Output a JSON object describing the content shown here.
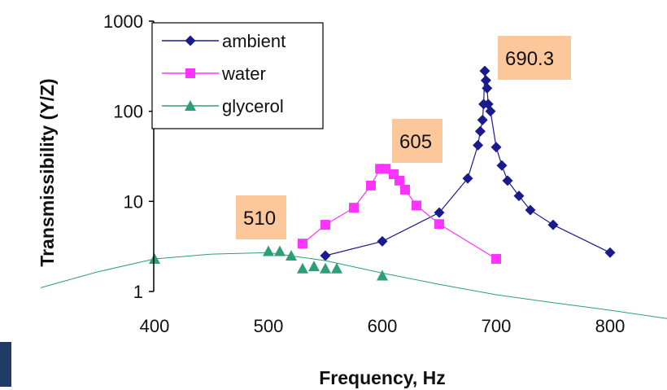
{
  "chart_data": {
    "type": "line",
    "xlabel": "Frequency, Hz",
    "ylabel": "Transmissibility (Y/Z)",
    "xlim": [
      400,
      800
    ],
    "ylim": [
      1,
      1000
    ],
    "y_scale": "log",
    "x_ticks": [
      "400",
      "500",
      "600",
      "700",
      "800"
    ],
    "y_ticks": [
      "1",
      "10",
      "100",
      "1000"
    ],
    "legend_position": "top-left",
    "series": [
      {
        "name": "ambient",
        "color": "#1a1a8c",
        "marker": "diamond",
        "points": [
          [
            550,
            2.5
          ],
          [
            600,
            3.6
          ],
          [
            650,
            7.5
          ],
          [
            675,
            18
          ],
          [
            684,
            42
          ],
          [
            686,
            60
          ],
          [
            688,
            80
          ],
          [
            689,
            120
          ],
          [
            690,
            280
          ],
          [
            691,
            220
          ],
          [
            692,
            180
          ],
          [
            693,
            120
          ],
          [
            695,
            100
          ],
          [
            700,
            40
          ],
          [
            705,
            25
          ],
          [
            710,
            17
          ],
          [
            720,
            11.5
          ],
          [
            730,
            8
          ],
          [
            750,
            5.5
          ],
          [
            800,
            2.7
          ]
        ]
      },
      {
        "name": "water",
        "color": "#ff33ff",
        "marker": "square",
        "points": [
          [
            530,
            3.4
          ],
          [
            550,
            5.5
          ],
          [
            575,
            8.5
          ],
          [
            590,
            15
          ],
          [
            598,
            23
          ],
          [
            603,
            23
          ],
          [
            610,
            20
          ],
          [
            615,
            17
          ],
          [
            620,
            13.5
          ],
          [
            630,
            9
          ],
          [
            650,
            5.6
          ],
          [
            700,
            2.3
          ]
        ]
      },
      {
        "name": "glycerol",
        "color": "#2e9e78",
        "marker": "triangle",
        "points": [
          [
            400,
            2.3
          ],
          [
            500,
            2.8
          ],
          [
            510,
            2.8
          ],
          [
            520,
            2.5
          ],
          [
            530,
            1.8
          ],
          [
            540,
            1.9
          ],
          [
            550,
            1.8
          ],
          [
            560,
            1.8
          ],
          [
            600,
            1.5
          ]
        ],
        "fit_curve": [
          [
            300,
            1.1
          ],
          [
            350,
            1.65
          ],
          [
            400,
            2.3
          ],
          [
            450,
            2.6
          ],
          [
            500,
            2.7
          ],
          [
            550,
            2.2
          ],
          [
            600,
            1.6
          ],
          [
            650,
            1.2
          ],
          [
            700,
            0.92
          ],
          [
            750,
            0.75
          ],
          [
            800,
            0.62
          ],
          [
            850,
            0.5
          ]
        ]
      }
    ],
    "annotations": [
      {
        "text": "690.3",
        "x": 690.3
      },
      {
        "text": "605",
        "x": 605
      },
      {
        "text": "510",
        "x": 510
      }
    ],
    "annotation_color": "#fcc89b"
  }
}
